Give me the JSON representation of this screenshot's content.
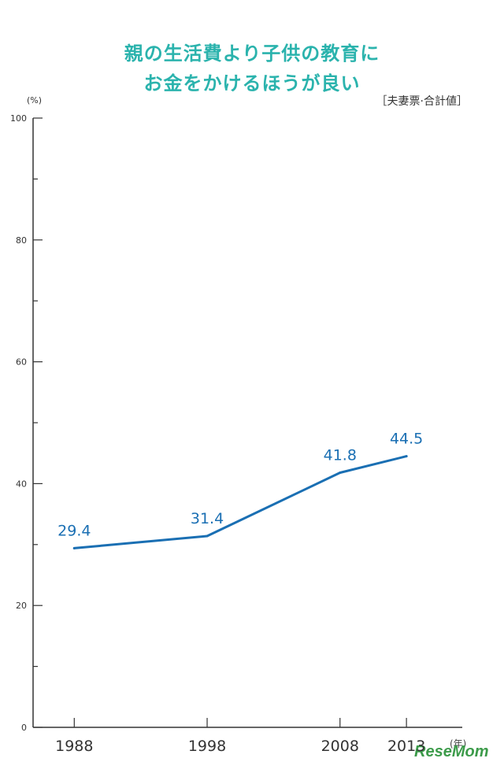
{
  "colors": {
    "title": "#2bb3ad",
    "line": "#1a6fb3",
    "axis": "#333333",
    "label": "#1a6fb3",
    "logo": "#3c9b4a"
  },
  "title": {
    "line1": "親の生活費より子供の教育に",
    "line2": "お金をかけるほうが良い"
  },
  "note": "［夫妻票·合計値］",
  "logo": "ReseMom",
  "chart_data": {
    "type": "line",
    "title": "親の生活費より子供の教育に お金をかけるほうが良い",
    "ylabel": "(%)",
    "xlabel": "(年)",
    "ylim": [
      0,
      100
    ],
    "yticks": [
      "0",
      "20",
      "40",
      "60",
      "80",
      "100"
    ],
    "ytick_values": [
      0,
      20,
      40,
      60,
      80,
      100
    ],
    "x": [
      1988,
      1998,
      2008,
      2013
    ],
    "x_labels": [
      "1988",
      "1998",
      "2008",
      "2013"
    ],
    "values": [
      29.4,
      31.4,
      41.8,
      44.5
    ],
    "value_labels": [
      "29.4",
      "31.4",
      "41.8",
      "44.5"
    ],
    "grid": false
  }
}
